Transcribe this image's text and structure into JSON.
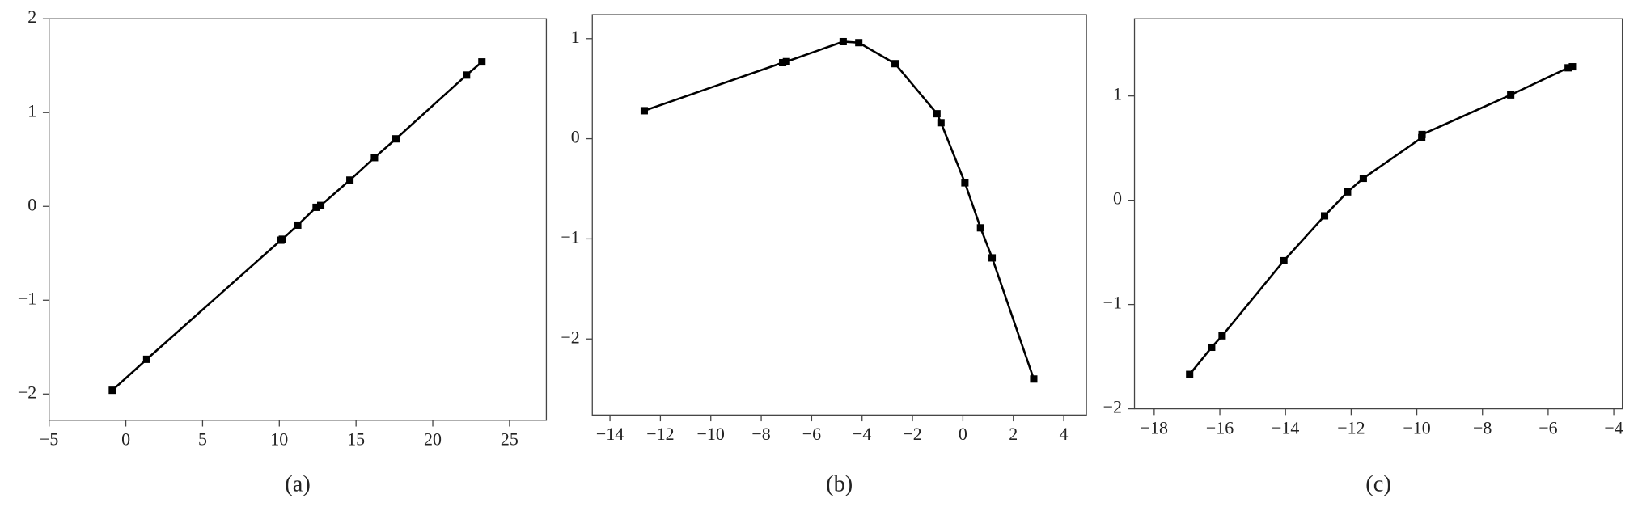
{
  "chart_data": [
    {
      "type": "line",
      "caption": "(a)",
      "color": "#000000",
      "x": [
        -0.88,
        1.36,
        10.1,
        10.2,
        11.2,
        12.4,
        12.7,
        14.6,
        16.2,
        17.6,
        22.2,
        23.2
      ],
      "values": [
        -1.96,
        -1.63,
        -0.36,
        -0.35,
        -0.2,
        -0.01,
        0.01,
        0.28,
        0.52,
        0.72,
        1.4,
        1.54
      ],
      "xlim": [
        -5,
        27.4
      ],
      "ylim": [
        -2.28,
        2
      ],
      "xticks": [
        {
          "value": -5,
          "label": "−5"
        },
        0,
        5,
        10,
        15,
        20,
        25
      ],
      "yticks": [
        {
          "value": -2,
          "label": "−2"
        },
        {
          "value": -1,
          "label": "−1"
        },
        0,
        1,
        2
      ]
    },
    {
      "type": "line",
      "caption": "(b)",
      "color": "#000000",
      "x": [
        -12.64,
        -7.15,
        -7.0,
        -4.75,
        -4.13,
        -2.69,
        -1.03,
        -0.87,
        0.08,
        0.7,
        1.16,
        2.81
      ],
      "values": [
        0.28,
        0.76,
        0.77,
        0.97,
        0.96,
        0.75,
        0.25,
        0.16,
        -0.44,
        -0.89,
        -1.19,
        -2.4
      ],
      "xlim": [
        -14.7,
        4.9
      ],
      "ylim": [
        -2.76,
        1.24
      ],
      "xticks": [
        {
          "value": -14,
          "label": "−14"
        },
        {
          "value": -12,
          "label": "−12"
        },
        {
          "value": -10,
          "label": "−10"
        },
        {
          "value": -8,
          "label": "−8"
        },
        {
          "value": -6,
          "label": "−6"
        },
        {
          "value": -4,
          "label": "−4"
        },
        {
          "value": -2,
          "label": "−2"
        },
        0,
        2,
        4
      ],
      "yticks": [
        {
          "value": -2,
          "label": "−2"
        },
        {
          "value": -1,
          "label": "−1"
        },
        0,
        1
      ]
    },
    {
      "type": "line",
      "caption": "(c)",
      "color": "#000000",
      "x": [
        -16.92,
        -16.25,
        -15.93,
        -14.05,
        -12.81,
        -12.11,
        -11.63,
        -9.85,
        -9.84,
        -7.14,
        -5.39,
        -5.26
      ],
      "values": [
        -1.67,
        -1.41,
        -1.3,
        -0.58,
        -0.15,
        0.08,
        0.21,
        0.6,
        0.63,
        1.01,
        1.27,
        1.28
      ],
      "xlim": [
        -18.6,
        -3.74
      ],
      "ylim": [
        -2,
        1.74
      ],
      "xticks": [
        {
          "value": -18,
          "label": "−18"
        },
        {
          "value": -16,
          "label": "−16"
        },
        {
          "value": -14,
          "label": "−14"
        },
        {
          "value": -12,
          "label": "−12"
        },
        {
          "value": -10,
          "label": "−10"
        },
        {
          "value": -8,
          "label": "−8"
        },
        {
          "value": -6,
          "label": "−6"
        },
        {
          "value": -4,
          "label": "−4"
        }
      ],
      "yticks": [
        {
          "value": -2,
          "label": "−2"
        },
        {
          "value": -1,
          "label": "−1"
        },
        0,
        1
      ]
    }
  ]
}
